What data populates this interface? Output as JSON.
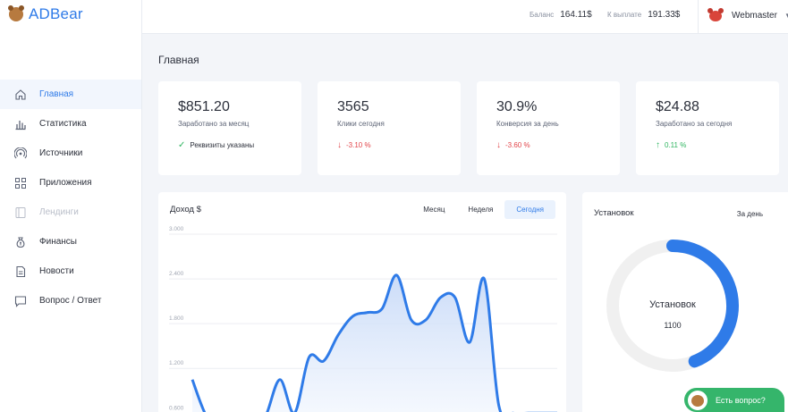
{
  "app": {
    "name": "ADBear"
  },
  "header": {
    "balance_label": "Баланс",
    "balance_value": "164.11$",
    "payout_label": "К выплате",
    "payout_value": "191.33$",
    "user_name": "Webmaster"
  },
  "sidebar": {
    "items": [
      {
        "label": "Главная",
        "icon": "home-icon",
        "state": "active"
      },
      {
        "label": "Статистика",
        "icon": "bar-chart-icon",
        "state": "normal"
      },
      {
        "label": "Источники",
        "icon": "signal-icon",
        "state": "normal"
      },
      {
        "label": "Приложения",
        "icon": "grid-icon",
        "state": "normal"
      },
      {
        "label": "Лендинги",
        "icon": "page-icon",
        "state": "disabled"
      },
      {
        "label": "Финансы",
        "icon": "money-bag-icon",
        "state": "normal"
      },
      {
        "label": "Новости",
        "icon": "document-icon",
        "state": "normal"
      },
      {
        "label": "Вопрос / Ответ",
        "icon": "chat-icon",
        "state": "normal"
      }
    ]
  },
  "page": {
    "title": "Главная"
  },
  "stats": [
    {
      "value": "$851.20",
      "label": "Заработано за месяц",
      "foot": "Реквизиты указаны",
      "status": "ok"
    },
    {
      "value": "3565",
      "label": "Клики сегодня",
      "foot": "-3.10 %",
      "status": "down"
    },
    {
      "value": "30.9%",
      "label": "Конверсия за день",
      "foot": "-3.60 %",
      "status": "down"
    },
    {
      "value": "$24.88",
      "label": "Заработано за сегодня",
      "foot": "0.11 %",
      "status": "up"
    }
  ],
  "income": {
    "title": "Доход $",
    "tabs": [
      "Месяц",
      "Неделя",
      "Сегодня"
    ],
    "active_tab": "Сегодня"
  },
  "chart_data": {
    "type": "area",
    "ylim": [
      0.4,
      3.0
    ],
    "yticks": [
      "3.000",
      "2.400",
      "1.800",
      "1.200",
      "0.600"
    ],
    "ytick_values": [
      3.0,
      2.4,
      1.8,
      1.2,
      0.6
    ],
    "x": [
      0,
      1,
      2,
      3,
      4,
      5,
      6,
      7,
      8,
      9,
      10,
      11,
      12,
      13,
      14,
      15,
      16,
      17,
      18,
      19,
      20,
      21,
      22,
      23,
      24,
      25
    ],
    "series": [
      {
        "values": [
          1.05,
          0.55,
          0.45,
          0.4,
          0.35,
          0.55,
          1.05,
          0.6,
          1.35,
          1.3,
          1.65,
          1.9,
          1.95,
          2.0,
          2.45,
          1.85,
          1.85,
          2.15,
          2.15,
          1.55,
          2.4,
          0.7,
          0.6,
          0.6,
          0.6,
          0.6
        ]
      }
    ],
    "grid": true,
    "colors": {
      "line": "#2f7be8",
      "fill_top": "#c5d8f7",
      "fill_bottom": "#f4f8fe"
    }
  },
  "installs": {
    "title": "Установок",
    "period": "За день",
    "center_label": "Установок",
    "center_value": "1100",
    "fraction": 0.44,
    "colors": {
      "arc": "#2f7be8",
      "track": "#f0f0f0"
    }
  },
  "help": {
    "label": "Есть вопрос?"
  }
}
